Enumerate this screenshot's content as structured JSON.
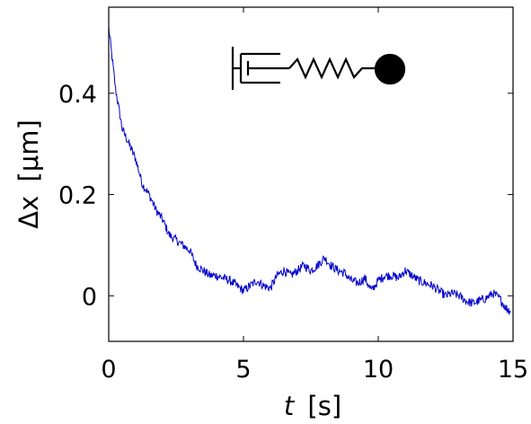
{
  "chart_data": {
    "type": "line",
    "title": "",
    "xlabel_var": "t",
    "xlabel_unit": "[s]",
    "ylabel_var": "Δx",
    "ylabel_unit": "[μm]",
    "xlim": [
      0,
      15
    ],
    "ylim": [
      -0.09,
      0.57
    ],
    "xticks": [
      0,
      5,
      10,
      15
    ],
    "xtick_labels": [
      "0",
      "5",
      "10",
      "15"
    ],
    "yticks": [
      0,
      0.2,
      0.4
    ],
    "ytick_labels": [
      "0",
      "0.2",
      "0.4"
    ],
    "grid": false,
    "legend": "none",
    "series": [
      {
        "color": "#0000cc",
        "x": [
          0,
          0.25,
          0.5,
          0.75,
          1.0,
          1.25,
          1.5,
          1.75,
          2.0,
          2.25,
          2.5,
          2.75,
          3.0,
          3.25,
          3.5,
          3.75,
          4.0,
          4.25,
          4.5,
          4.75,
          5.0,
          5.25,
          5.5,
          5.75,
          6.0,
          6.25,
          6.5,
          6.75,
          7.0,
          7.25,
          7.5,
          7.75,
          8.0,
          8.25,
          8.5,
          8.75,
          9.0,
          9.25,
          9.5,
          9.75,
          10.0,
          10.25,
          10.5,
          10.75,
          11.0,
          11.25,
          11.5,
          11.75,
          12.0,
          12.25,
          12.5,
          12.75,
          13.0,
          13.25,
          13.5,
          13.75,
          14.0,
          14.25,
          14.5,
          14.75,
          14.9
        ],
        "y": [
          0.53,
          0.41,
          0.33,
          0.3,
          0.27,
          0.22,
          0.2,
          0.17,
          0.15,
          0.12,
          0.11,
          0.1,
          0.09,
          0.06,
          0.05,
          0.04,
          0.04,
          0.035,
          0.03,
          0.02,
          0.01,
          0.02,
          0.03,
          0.02,
          0.015,
          0.04,
          0.05,
          0.04,
          0.05,
          0.06,
          0.05,
          0.06,
          0.075,
          0.06,
          0.05,
          0.045,
          0.03,
          0.025,
          0.035,
          0.01,
          0.03,
          0.04,
          0.04,
          0.035,
          0.05,
          0.04,
          0.03,
          0.025,
          0.02,
          0.01,
          0.0,
          0.005,
          0.0,
          -0.01,
          -0.015,
          -0.01,
          -0.005,
          0.005,
          -0.005,
          -0.025,
          -0.03
        ]
      }
    ]
  },
  "icon": "dashpot-spring-bead-icon"
}
